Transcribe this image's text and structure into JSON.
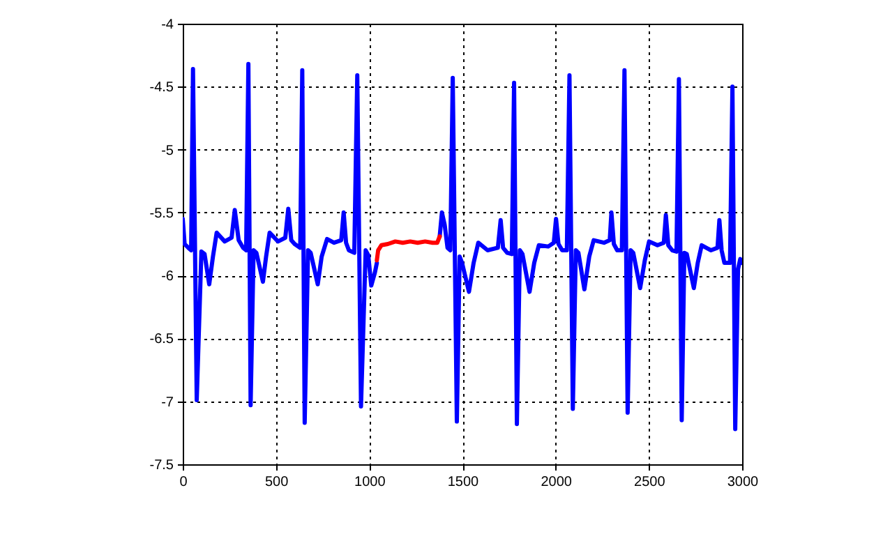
{
  "chart_data": {
    "type": "line",
    "xlim": [
      0,
      3000
    ],
    "xticks": [
      0,
      500,
      1000,
      1500,
      2000,
      2500,
      3000
    ],
    "ylim": [
      -7.5,
      -4
    ],
    "yticks": [
      -7.5,
      -7,
      -6.5,
      -6,
      -5.5,
      -5,
      -4.5,
      -4
    ],
    "grid": true,
    "series": [
      {
        "color": "#0000ff",
        "x": [
          0,
          10,
          30,
          45,
          55,
          75,
          100,
          117,
          142,
          162,
          182,
          225,
          262,
          279,
          300,
          324,
          340,
          352,
          364,
          380,
          395,
          430,
          447,
          466,
          511,
          550,
          566,
          582,
          600,
          630,
          641,
          654,
          672,
          686,
          724,
          745,
          774,
          811,
          850,
          863,
          876,
          891,
          920,
          936,
          956,
          981,
          995,
          1011,
          1030,
          1041,
          1200,
          1378,
          1390,
          1405,
          1420,
          1435,
          1448,
          1470,
          1485,
          1498,
          1535,
          1560,
          1585,
          1635,
          1690,
          1705,
          1718,
          1740,
          1765,
          1777,
          1792,
          1808,
          1822,
          1860,
          1885,
          1910,
          1960,
          1990,
          2002,
          2015,
          2035,
          2060,
          2074,
          2092,
          2108,
          2122,
          2154,
          2180,
          2204,
          2259,
          2290,
          2299,
          2312,
          2330,
          2355,
          2369,
          2386,
          2402,
          2416,
          2453,
          2478,
          2501,
          2546,
          2580,
          2591,
          2604,
          2625,
          2648,
          2661,
          2676,
          2690,
          2703,
          2741,
          2762,
          2783,
          2833,
          2868,
          2878,
          2890,
          2905,
          2935,
          2948,
          2963,
          2978,
          2990,
          3000
        ],
        "values": [
          -5.55,
          -5.75,
          -5.78,
          -5.8,
          -4.36,
          -6.99,
          -5.81,
          -5.83,
          -6.07,
          -5.85,
          -5.66,
          -5.73,
          -5.7,
          -5.48,
          -5.72,
          -5.78,
          -5.8,
          -4.32,
          -7.03,
          -5.8,
          -5.82,
          -6.05,
          -5.85,
          -5.66,
          -5.73,
          -5.7,
          -5.47,
          -5.72,
          -5.75,
          -5.78,
          -4.37,
          -7.17,
          -5.8,
          -5.82,
          -6.07,
          -5.85,
          -5.71,
          -5.74,
          -5.72,
          -5.5,
          -5.74,
          -5.8,
          -5.82,
          -4.41,
          -7.04,
          -5.8,
          -5.84,
          -6.08,
          -5.98,
          -5.9,
          null,
          -5.69,
          -5.5,
          -5.6,
          -5.78,
          -5.8,
          -4.43,
          -7.16,
          -5.85,
          -5.9,
          -6.13,
          -5.9,
          -5.74,
          -5.8,
          -5.78,
          -5.56,
          -5.78,
          -5.82,
          -5.83,
          -4.47,
          -7.18,
          -5.8,
          -5.83,
          -6.13,
          -5.9,
          -5.76,
          -5.77,
          -5.74,
          -5.55,
          -5.75,
          -5.8,
          -5.8,
          -4.41,
          -7.06,
          -5.8,
          -5.82,
          -6.11,
          -5.85,
          -5.72,
          -5.74,
          -5.72,
          -5.5,
          -5.75,
          -5.8,
          -5.8,
          -4.37,
          -7.09,
          -5.8,
          -5.82,
          -6.1,
          -5.88,
          -5.73,
          -5.76,
          -5.74,
          -5.52,
          -5.76,
          -5.8,
          -5.81,
          -4.44,
          -7.15,
          -5.82,
          -5.83,
          -6.1,
          -5.9,
          -5.76,
          -5.8,
          -5.78,
          -5.56,
          -5.8,
          -5.9,
          -5.9,
          -4.5,
          -7.22,
          -5.95,
          -5.87,
          -5.9
        ]
      },
      {
        "color": "#ff0000",
        "x": [
          1041,
          1048,
          1065,
          1100,
          1140,
          1180,
          1220,
          1260,
          1300,
          1340,
          1365,
          1378
        ],
        "values": [
          -5.88,
          -5.8,
          -5.76,
          -5.75,
          -5.73,
          -5.74,
          -5.73,
          -5.74,
          -5.73,
          -5.74,
          -5.74,
          -5.69
        ]
      }
    ]
  }
}
